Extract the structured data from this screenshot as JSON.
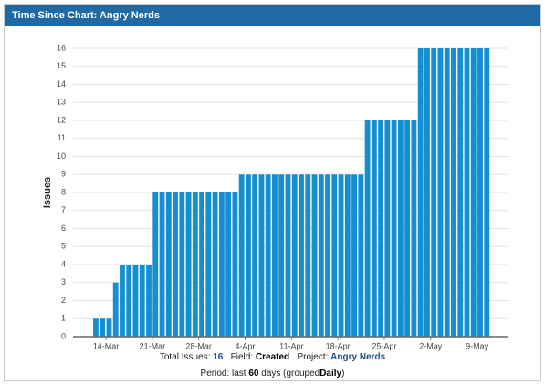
{
  "header": {
    "title": "Time Since Chart: Angry Nerds"
  },
  "chart_data": {
    "type": "bar",
    "ylabel": "Issues",
    "color": "#168fd0",
    "grid": true,
    "categories": [
      null,
      null,
      "14-Mar",
      null,
      null,
      null,
      null,
      null,
      null,
      "21-Mar",
      null,
      null,
      null,
      null,
      null,
      null,
      "28-Mar",
      null,
      null,
      null,
      null,
      null,
      null,
      "4-Apr",
      null,
      null,
      null,
      null,
      null,
      null,
      "11-Apr",
      null,
      null,
      null,
      null,
      null,
      null,
      "18-Apr",
      null,
      null,
      null,
      null,
      null,
      null,
      "25-Apr",
      null,
      null,
      null,
      null,
      null,
      null,
      "2-May",
      null,
      null,
      null,
      null,
      null,
      null,
      "9-May",
      null
    ],
    "values": [
      1,
      1,
      1,
      3,
      4,
      4,
      4,
      4,
      4,
      8,
      8,
      8,
      8,
      8,
      8,
      8,
      8,
      8,
      8,
      8,
      8,
      8,
      9,
      9,
      9,
      9,
      9,
      9,
      9,
      9,
      9,
      9,
      9,
      9,
      9,
      9,
      9,
      9,
      9,
      9,
      9,
      12,
      12,
      12,
      12,
      12,
      12,
      12,
      12,
      16,
      16,
      16,
      16,
      16,
      16,
      16,
      16,
      16,
      16,
      16
    ],
    "ylim": [
      0,
      16
    ],
    "yticks": [
      0,
      1,
      2,
      3,
      4,
      5,
      6,
      7,
      8,
      9,
      10,
      11,
      12,
      13,
      14,
      15,
      16
    ]
  },
  "footer": {
    "total_label": "Total Issues:",
    "total": "16",
    "field_label": "Field:",
    "field": "Created",
    "project_label": "Project:",
    "project": "Angry Nerds",
    "period_label": "Period: last",
    "period_days": "60",
    "period_unit": "days (grouped",
    "period_group": "Daily",
    "period_close": ")"
  }
}
